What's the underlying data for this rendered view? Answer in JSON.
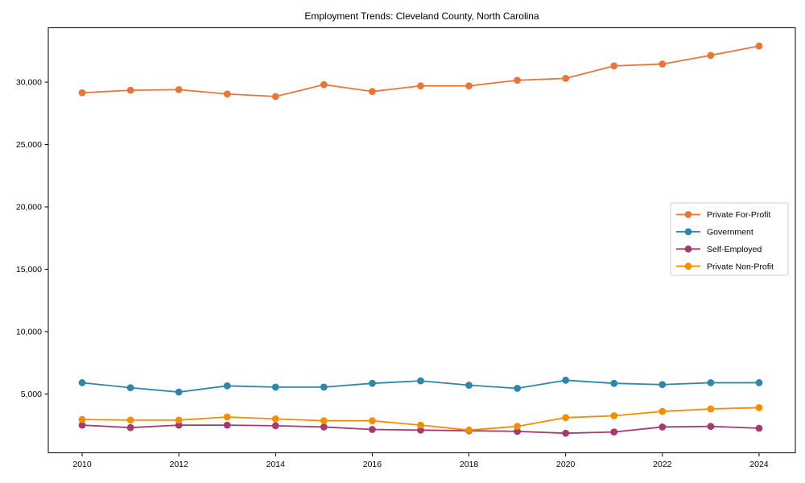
{
  "chart_data": {
    "type": "line",
    "title": "Employment Trends: Cleveland County, North Carolina",
    "xlabel": "",
    "ylabel": "",
    "x": [
      2010,
      2011,
      2012,
      2013,
      2014,
      2015,
      2016,
      2017,
      2018,
      2019,
      2020,
      2021,
      2022,
      2023,
      2024
    ],
    "series": [
      {
        "name": "Private For-Profit",
        "color": "#E8763B",
        "values": [
          29150,
          29350,
          29400,
          29050,
          28850,
          29800,
          29250,
          29700,
          29700,
          30150,
          30300,
          31300,
          31450,
          32150,
          32900
        ]
      },
      {
        "name": "Government",
        "color": "#2E86AB",
        "values": [
          5900,
          5500,
          5150,
          5650,
          5550,
          5550,
          5850,
          6050,
          5700,
          5450,
          6100,
          5850,
          5750,
          5900,
          5900
        ]
      },
      {
        "name": "Self-Employed",
        "color": "#A23B72",
        "values": [
          2500,
          2300,
          2500,
          2500,
          2450,
          2350,
          2150,
          2100,
          2050,
          2000,
          1850,
          1950,
          2350,
          2400,
          2250
        ]
      },
      {
        "name": "Private Non-Profit",
        "color": "#F18F01",
        "values": [
          2950,
          2900,
          2900,
          3150,
          3000,
          2850,
          2850,
          2500,
          2100,
          2400,
          3100,
          3250,
          3600,
          3800,
          3900
        ]
      }
    ],
    "xticks": [
      "2010",
      "2012",
      "2014",
      "2016",
      "2018",
      "2020",
      "2022",
      "2024"
    ],
    "xtick_values": [
      2010,
      2012,
      2014,
      2016,
      2018,
      2020,
      2022,
      2024
    ],
    "yticks": [
      5000,
      10000,
      15000,
      20000,
      25000,
      30000
    ],
    "ytick_labels": [
      "5,000",
      "10,000",
      "15,000",
      "20,000",
      "25,000",
      "30,000"
    ],
    "xlim": [
      2009.3,
      2024.75
    ],
    "ylim": [
      280,
      34360
    ],
    "grid": false,
    "legend_position": "center right",
    "marker": "circle",
    "background_color": "#ffffff",
    "spine_color": "#000000"
  }
}
